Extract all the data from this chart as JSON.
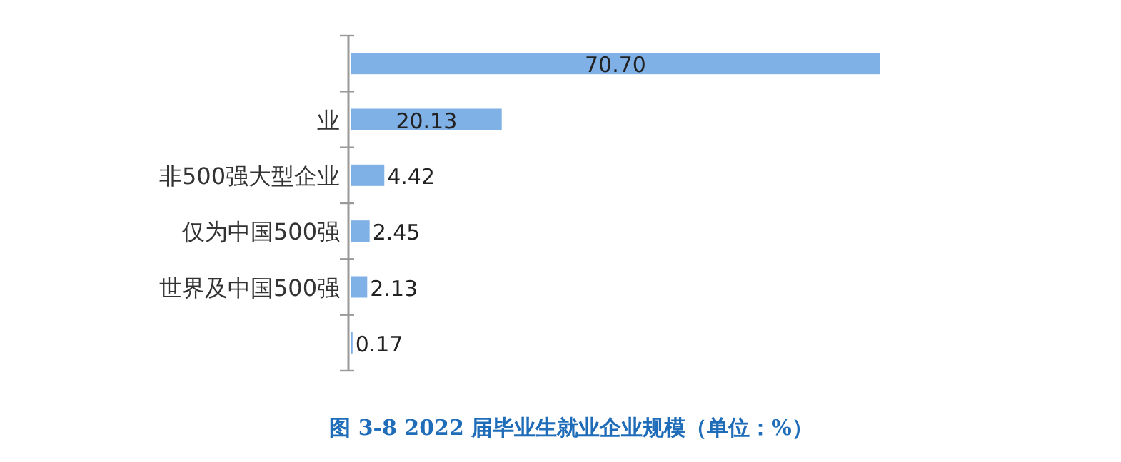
{
  "chart_data": {
    "type": "bar",
    "orientation": "horizontal",
    "title": "图 3-8 2022 届毕业生就业企业规模（单位：%）",
    "categories": [
      null,
      "业",
      "非500强大型企业",
      "仅为中国500强",
      "世界及中国500强",
      null
    ],
    "values": [
      70.7,
      20.13,
      4.42,
      2.45,
      2.13,
      0.17
    ],
    "value_labels": [
      "70.70",
      "20.13",
      "4.42",
      "2.45",
      "2.13",
      "0.17"
    ],
    "color": "#7fb0e6"
  }
}
